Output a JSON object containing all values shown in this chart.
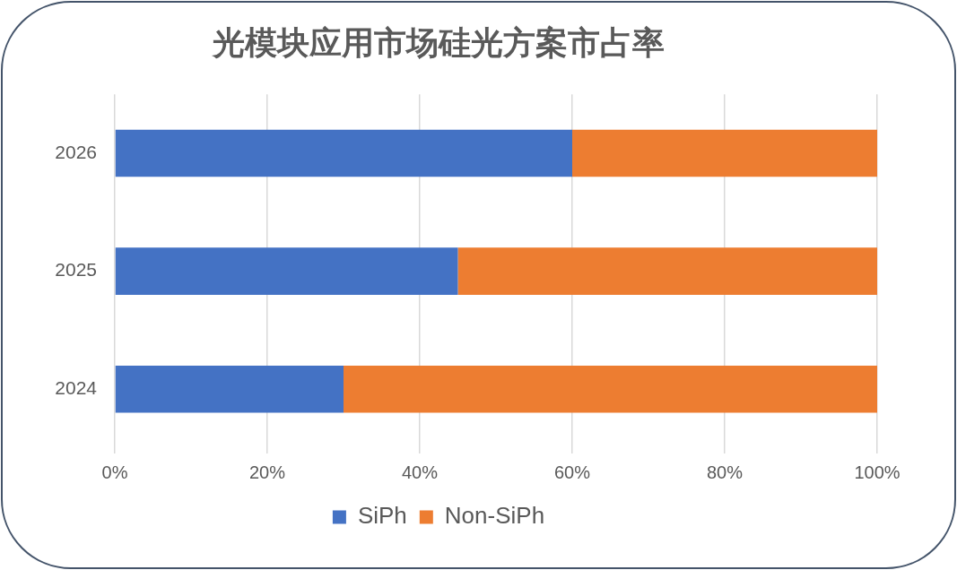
{
  "chart_data": {
    "type": "bar",
    "orientation": "horizontal",
    "stacked": true,
    "title": "光模块应用市场硅光方案市占率",
    "categories": [
      "2026",
      "2025",
      "2024"
    ],
    "series": [
      {
        "name": "SiPh",
        "color": "#4472c4",
        "values": [
          60,
          45,
          30
        ]
      },
      {
        "name": "Non-SiPh",
        "color": "#ed7d31",
        "values": [
          40,
          55,
          70
        ]
      }
    ],
    "xlim": [
      0,
      100
    ],
    "xticks": [
      {
        "value": 0,
        "label": "0%"
      },
      {
        "value": 20,
        "label": "20%"
      },
      {
        "value": 40,
        "label": "40%"
      },
      {
        "value": 60,
        "label": "60%"
      },
      {
        "value": 80,
        "label": "80%"
      },
      {
        "value": 100,
        "label": "100%"
      }
    ],
    "grid": "x",
    "legend": "bottom"
  }
}
